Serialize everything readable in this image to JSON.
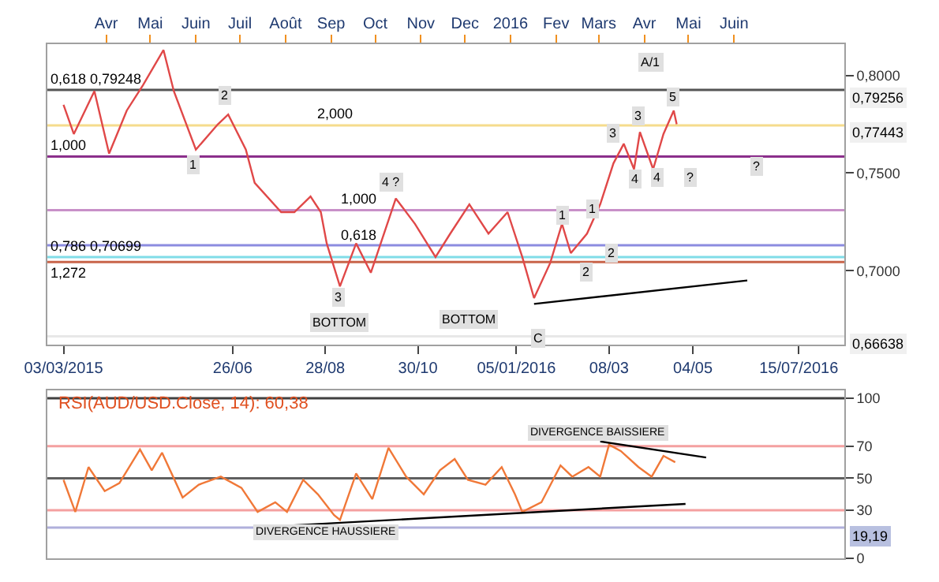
{
  "chart_data": [
    {
      "type": "line",
      "xlim": [
        "2015-02-20",
        "2016-08-15"
      ],
      "xticks": [
        {
          "value": "2015-03-03",
          "label": "03/03/2015"
        },
        {
          "value": "2015-06-26",
          "label": "26/06"
        },
        {
          "value": "2015-08-28",
          "label": "28/08"
        },
        {
          "value": "2015-10-30",
          "label": "30/10"
        },
        {
          "value": "2016-01-05",
          "label": "05/01/2016"
        },
        {
          "value": "2016-03-08",
          "label": "08/03"
        },
        {
          "value": "2016-05-04",
          "label": "04/05"
        },
        {
          "value": "2016-07-15",
          "label": "15/07/2016"
        }
      ],
      "x2lim": [
        "2015-02-20",
        "2016-08-15"
      ],
      "x2ticks": [
        {
          "value": "2015-04-01",
          "label": "Avr"
        },
        {
          "value": "2015-05-01",
          "label": "Mai"
        },
        {
          "value": "2015-06-01",
          "label": "Juin"
        },
        {
          "value": "2015-07-01",
          "label": "Juil"
        },
        {
          "value": "2015-08-01",
          "label": "Août"
        },
        {
          "value": "2015-09-01",
          "label": "Sep"
        },
        {
          "value": "2015-10-01",
          "label": "Oct"
        },
        {
          "value": "2015-11-01",
          "label": "Nov"
        },
        {
          "value": "2015-12-01",
          "label": "Dec"
        },
        {
          "value": "2016-01-01",
          "label": "2016"
        },
        {
          "value": "2016-02-01",
          "label": "Fev"
        },
        {
          "value": "2016-03-01",
          "label": "Mars"
        },
        {
          "value": "2016-04-01",
          "label": "Avr"
        },
        {
          "value": "2016-05-01",
          "label": "Mai"
        },
        {
          "value": "2016-06-01",
          "label": "Juin"
        }
      ],
      "ylim": [
        0.662,
        0.816
      ],
      "yticks": [
        {
          "value": 0.7,
          "label": "0,7000"
        },
        {
          "value": 0.75,
          "label": "0,7500"
        },
        {
          "value": 0.8,
          "label": "0,8000"
        }
      ],
      "series": [
        {
          "color": "#e04848",
          "x": [
            "2015-03-03",
            "2015-03-10",
            "2015-03-24",
            "2015-04-03",
            "2015-04-15",
            "2015-04-26",
            "2015-05-10",
            "2015-05-17",
            "2015-06-01",
            "2015-06-16",
            "2015-06-23",
            "2015-07-05",
            "2015-07-11",
            "2015-07-29",
            "2015-08-07",
            "2015-08-18",
            "2015-08-25",
            "2015-08-29",
            "2015-09-07",
            "2015-09-18",
            "2015-09-28",
            "2015-10-15",
            "2015-10-28",
            "2015-11-11",
            "2015-11-21",
            "2015-12-04",
            "2015-12-17",
            "2015-12-30",
            "2016-01-09",
            "2016-01-17",
            "2016-01-28",
            "2016-02-05",
            "2016-02-11",
            "2016-02-22",
            "2016-03-02",
            "2016-03-11",
            "2016-03-18",
            "2016-03-25",
            "2016-03-29",
            "2016-04-07",
            "2016-04-14",
            "2016-04-21",
            "2016-04-23"
          ],
          "values": [
            0.785,
            0.77,
            0.792,
            0.76,
            0.782,
            0.795,
            0.813,
            0.792,
            0.762,
            0.775,
            0.78,
            0.762,
            0.745,
            0.73,
            0.73,
            0.738,
            0.73,
            0.714,
            0.692,
            0.714,
            0.699,
            0.737,
            0.724,
            0.707,
            0.719,
            0.734,
            0.719,
            0.73,
            0.707,
            0.686,
            0.704,
            0.724,
            0.709,
            0.719,
            0.734,
            0.755,
            0.765,
            0.752,
            0.771,
            0.752,
            0.77,
            0.782,
            0.775
          ]
        },
        {
          "color": "#000000",
          "x": [
            "2016-01-17",
            "2016-06-10"
          ],
          "values": [
            0.683,
            0.695
          ]
        }
      ],
      "ref_lines": [
        {
          "axis": "y",
          "value": 0.79256,
          "label": "0,79256",
          "color": "#555555"
        },
        {
          "axis": "y",
          "value": 0.77443,
          "label": "0,77443",
          "color": "#f5dc8c"
        },
        {
          "axis": "y",
          "value": 0.7585,
          "color": "#8b2f8b"
        },
        {
          "axis": "y",
          "value": 0.731,
          "color": "#c890c8"
        },
        {
          "axis": "y",
          "value": 0.713,
          "color": "#8c8ce0"
        },
        {
          "axis": "y",
          "value": 0.70699,
          "color": "#80dce8"
        },
        {
          "axis": "y",
          "value": 0.7045,
          "color": "#c8644a"
        },
        {
          "axis": "y",
          "value": 0.66638,
          "label": "0,66638",
          "color": "#e8e8e8"
        }
      ],
      "annotations": [
        {
          "text": "0,618 0,79248",
          "x": "2015-02-20",
          "y": 0.79248
        },
        {
          "text": "2,000",
          "x": "2015-08-20",
          "y": 0.77443
        },
        {
          "text": "1,000",
          "x": "2015-02-20",
          "y": 0.7585
        },
        {
          "text": "1,000",
          "x": "2015-09-05",
          "y": 0.731
        },
        {
          "text": "0,618",
          "x": "2015-09-05",
          "y": 0.713
        },
        {
          "text": "0,786 0,70699",
          "x": "2015-02-20",
          "y": 0.70699
        },
        {
          "text": "1,272",
          "x": "2015-02-20",
          "y": 0.7045
        },
        {
          "text": "BOTTOM",
          "x": "2015-09-07",
          "y": 0.6735
        },
        {
          "text": "BOTTOM",
          "x": "2015-12-04",
          "y": 0.675
        },
        {
          "text": "C",
          "x": "2016-01-20",
          "y": 0.6655
        },
        {
          "text": "A/1",
          "x": "2016-04-06",
          "y": 0.807
        },
        {
          "text": "1",
          "x": "2015-05-30",
          "y": 0.7545
        },
        {
          "text": "2",
          "x": "2015-06-21",
          "y": 0.79
        },
        {
          "text": "3",
          "x": "2015-09-06",
          "y": 0.6863
        },
        {
          "text": "4 ?",
          "x": "2015-10-12",
          "y": 0.745
        },
        {
          "text": "1",
          "x": "2016-02-05",
          "y": 0.728
        },
        {
          "text": "1",
          "x": "2016-02-26",
          "y": 0.732
        },
        {
          "text": "2",
          "x": "2016-03-10",
          "y": 0.709
        },
        {
          "text": "2",
          "x": "2016-02-22",
          "y": 0.699
        },
        {
          "text": "3",
          "x": "2016-03-11",
          "y": 0.77
        },
        {
          "text": "3",
          "x": "2016-03-28",
          "y": 0.779
        },
        {
          "text": "4",
          "x": "2016-03-26",
          "y": 0.747
        },
        {
          "text": "4",
          "x": "2016-04-10",
          "y": 0.748
        },
        {
          "text": "5",
          "x": "2016-04-21",
          "y": 0.789
        },
        {
          "text": "?",
          "x": "2016-05-02",
          "y": 0.748
        },
        {
          "text": "?",
          "x": "2016-06-16",
          "y": 0.7537
        }
      ]
    },
    {
      "type": "line",
      "title": "RSI(AUD/USD.Close, 14): 60,38",
      "xlim": [
        "2015-02-20",
        "2016-08-15"
      ],
      "ylim": [
        0,
        105
      ],
      "yticks": [
        0,
        30,
        50,
        70,
        100
      ],
      "tick_labels": "y",
      "series": [
        {
          "color": "#f07838",
          "x": [
            "2015-03-03",
            "2015-03-11",
            "2015-03-20",
            "2015-03-31",
            "2015-04-10",
            "2015-04-24",
            "2015-05-02",
            "2015-05-09",
            "2015-05-23",
            "2015-06-03",
            "2015-06-18",
            "2015-07-02",
            "2015-07-13",
            "2015-07-25",
            "2015-08-02",
            "2015-08-13",
            "2015-08-23",
            "2015-09-03",
            "2015-09-07",
            "2015-09-18",
            "2015-09-29",
            "2015-10-10",
            "2015-10-22",
            "2015-11-03",
            "2015-11-14",
            "2015-11-24",
            "2015-12-03",
            "2015-12-15",
            "2015-12-26",
            "2016-01-04",
            "2016-01-09",
            "2016-01-22",
            "2016-02-04",
            "2016-02-12",
            "2016-02-23",
            "2016-03-02",
            "2016-03-08",
            "2016-03-16",
            "2016-03-28",
            "2016-04-06",
            "2016-04-14",
            "2016-04-22"
          ],
          "values": [
            49,
            29,
            57,
            42,
            47,
            68,
            55,
            66,
            38,
            46,
            51,
            44,
            29,
            35,
            29,
            49,
            40,
            27,
            24,
            53,
            37,
            69,
            51,
            40,
            55,
            62,
            49,
            46,
            57,
            40,
            29,
            35,
            58,
            51,
            57,
            51,
            71,
            67,
            57,
            51,
            64,
            60
          ]
        },
        {
          "color": "#000000",
          "x": [
            "2015-07-25",
            "2016-04-29"
          ],
          "values": [
            20,
            34
          ]
        },
        {
          "color": "#000000",
          "x": [
            "2016-03-02",
            "2016-05-13"
          ],
          "values": [
            73,
            63
          ]
        }
      ],
      "ref_lines": [
        {
          "axis": "y",
          "value": 100,
          "color": "#404040"
        },
        {
          "axis": "y",
          "value": 70,
          "color": "#f4a0a0"
        },
        {
          "axis": "y",
          "value": 50,
          "color": "#606060"
        },
        {
          "axis": "y",
          "value": 30,
          "color": "#f4a0a0"
        },
        {
          "axis": "y",
          "value": 19.19,
          "label": "19,19",
          "color": "#b0b0dc"
        }
      ],
      "annotations": [
        "DIVERGENCE BAISSIERE",
        "DIVERGENCE HAUSSIERE"
      ]
    }
  ]
}
